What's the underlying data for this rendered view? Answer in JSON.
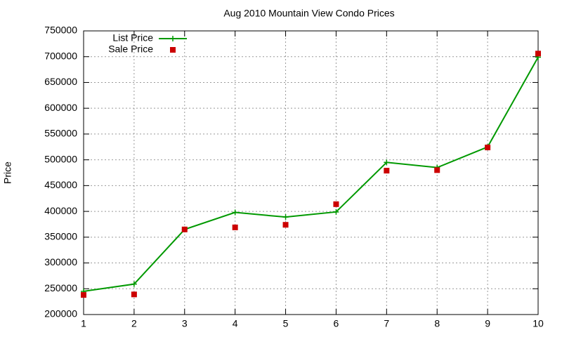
{
  "chart_data": {
    "type": "line",
    "title": "Aug 2010 Mountain View Condo Prices",
    "y_label": "Price",
    "x": [
      1,
      2,
      3,
      4,
      5,
      6,
      7,
      8,
      9,
      10
    ],
    "series": [
      {
        "name": "List Price",
        "color": "#009900",
        "mode": "lines+points",
        "values": [
          245000,
          259000,
          365000,
          398000,
          389000,
          399000,
          495000,
          485000,
          525000,
          699000
        ]
      },
      {
        "name": "Sale Price",
        "color": "#cc0000",
        "mode": "points",
        "values": [
          238000,
          239000,
          365000,
          369000,
          374000,
          414000,
          479000,
          480000,
          524000,
          706000
        ]
      }
    ],
    "xlim": [
      1,
      10
    ],
    "xticks": [
      1,
      2,
      3,
      4,
      5,
      6,
      7,
      8,
      9,
      10
    ],
    "ylim": [
      200000,
      750000
    ],
    "yticks": [
      200000,
      250000,
      300000,
      350000,
      400000,
      450000,
      500000,
      550000,
      600000,
      650000,
      700000,
      750000
    ],
    "grid": true,
    "legend": "top-left"
  }
}
